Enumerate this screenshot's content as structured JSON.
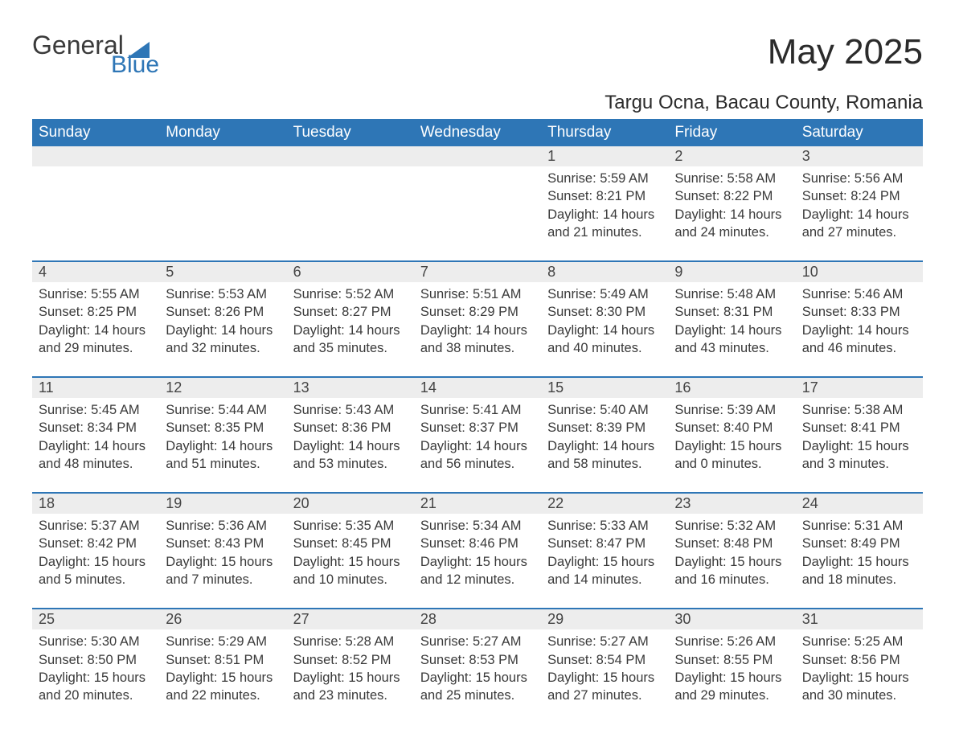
{
  "logo": {
    "line1": "General",
    "line2": "Blue",
    "triangle_color": "#2e76b6"
  },
  "title": "May 2025",
  "subtitle": "Targu Ocna, Bacau County, Romania",
  "colors": {
    "header_bg": "#2e76b6",
    "header_text": "#ffffff",
    "daynum_bg": "#ededed",
    "row_divider": "#2e76b6",
    "body_text": "#3a3a3a",
    "page_bg": "#ffffff"
  },
  "typography": {
    "title_fontsize": 44,
    "subtitle_fontsize": 24,
    "header_fontsize": 19,
    "daynum_fontsize": 18,
    "body_fontsize": 16.5
  },
  "days_of_week": [
    "Sunday",
    "Monday",
    "Tuesday",
    "Wednesday",
    "Thursday",
    "Friday",
    "Saturday"
  ],
  "weeks": [
    [
      null,
      null,
      null,
      null,
      {
        "n": "1",
        "sunrise": "5:59 AM",
        "sunset": "8:21 PM",
        "daylight": "14 hours and 21 minutes."
      },
      {
        "n": "2",
        "sunrise": "5:58 AM",
        "sunset": "8:22 PM",
        "daylight": "14 hours and 24 minutes."
      },
      {
        "n": "3",
        "sunrise": "5:56 AM",
        "sunset": "8:24 PM",
        "daylight": "14 hours and 27 minutes."
      }
    ],
    [
      {
        "n": "4",
        "sunrise": "5:55 AM",
        "sunset": "8:25 PM",
        "daylight": "14 hours and 29 minutes."
      },
      {
        "n": "5",
        "sunrise": "5:53 AM",
        "sunset": "8:26 PM",
        "daylight": "14 hours and 32 minutes."
      },
      {
        "n": "6",
        "sunrise": "5:52 AM",
        "sunset": "8:27 PM",
        "daylight": "14 hours and 35 minutes."
      },
      {
        "n": "7",
        "sunrise": "5:51 AM",
        "sunset": "8:29 PM",
        "daylight": "14 hours and 38 minutes."
      },
      {
        "n": "8",
        "sunrise": "5:49 AM",
        "sunset": "8:30 PM",
        "daylight": "14 hours and 40 minutes."
      },
      {
        "n": "9",
        "sunrise": "5:48 AM",
        "sunset": "8:31 PM",
        "daylight": "14 hours and 43 minutes."
      },
      {
        "n": "10",
        "sunrise": "5:46 AM",
        "sunset": "8:33 PM",
        "daylight": "14 hours and 46 minutes."
      }
    ],
    [
      {
        "n": "11",
        "sunrise": "5:45 AM",
        "sunset": "8:34 PM",
        "daylight": "14 hours and 48 minutes."
      },
      {
        "n": "12",
        "sunrise": "5:44 AM",
        "sunset": "8:35 PM",
        "daylight": "14 hours and 51 minutes."
      },
      {
        "n": "13",
        "sunrise": "5:43 AM",
        "sunset": "8:36 PM",
        "daylight": "14 hours and 53 minutes."
      },
      {
        "n": "14",
        "sunrise": "5:41 AM",
        "sunset": "8:37 PM",
        "daylight": "14 hours and 56 minutes."
      },
      {
        "n": "15",
        "sunrise": "5:40 AM",
        "sunset": "8:39 PM",
        "daylight": "14 hours and 58 minutes."
      },
      {
        "n": "16",
        "sunrise": "5:39 AM",
        "sunset": "8:40 PM",
        "daylight": "15 hours and 0 minutes."
      },
      {
        "n": "17",
        "sunrise": "5:38 AM",
        "sunset": "8:41 PM",
        "daylight": "15 hours and 3 minutes."
      }
    ],
    [
      {
        "n": "18",
        "sunrise": "5:37 AM",
        "sunset": "8:42 PM",
        "daylight": "15 hours and 5 minutes."
      },
      {
        "n": "19",
        "sunrise": "5:36 AM",
        "sunset": "8:43 PM",
        "daylight": "15 hours and 7 minutes."
      },
      {
        "n": "20",
        "sunrise": "5:35 AM",
        "sunset": "8:45 PM",
        "daylight": "15 hours and 10 minutes."
      },
      {
        "n": "21",
        "sunrise": "5:34 AM",
        "sunset": "8:46 PM",
        "daylight": "15 hours and 12 minutes."
      },
      {
        "n": "22",
        "sunrise": "5:33 AM",
        "sunset": "8:47 PM",
        "daylight": "15 hours and 14 minutes."
      },
      {
        "n": "23",
        "sunrise": "5:32 AM",
        "sunset": "8:48 PM",
        "daylight": "15 hours and 16 minutes."
      },
      {
        "n": "24",
        "sunrise": "5:31 AM",
        "sunset": "8:49 PM",
        "daylight": "15 hours and 18 minutes."
      }
    ],
    [
      {
        "n": "25",
        "sunrise": "5:30 AM",
        "sunset": "8:50 PM",
        "daylight": "15 hours and 20 minutes."
      },
      {
        "n": "26",
        "sunrise": "5:29 AM",
        "sunset": "8:51 PM",
        "daylight": "15 hours and 22 minutes."
      },
      {
        "n": "27",
        "sunrise": "5:28 AM",
        "sunset": "8:52 PM",
        "daylight": "15 hours and 23 minutes."
      },
      {
        "n": "28",
        "sunrise": "5:27 AM",
        "sunset": "8:53 PM",
        "daylight": "15 hours and 25 minutes."
      },
      {
        "n": "29",
        "sunrise": "5:27 AM",
        "sunset": "8:54 PM",
        "daylight": "15 hours and 27 minutes."
      },
      {
        "n": "30",
        "sunrise": "5:26 AM",
        "sunset": "8:55 PM",
        "daylight": "15 hours and 29 minutes."
      },
      {
        "n": "31",
        "sunrise": "5:25 AM",
        "sunset": "8:56 PM",
        "daylight": "15 hours and 30 minutes."
      }
    ]
  ],
  "labels": {
    "sunrise": "Sunrise:",
    "sunset": "Sunset:",
    "daylight": "Daylight:"
  }
}
